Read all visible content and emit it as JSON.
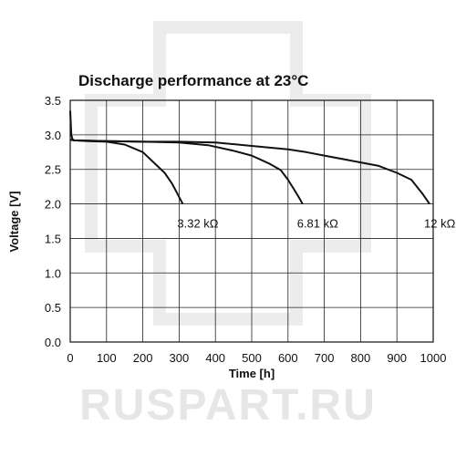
{
  "watermark": "RUSPART.RU",
  "chart_data": {
    "type": "line",
    "title": "Discharge performance at 23°C",
    "xlabel": "Time [h]",
    "ylabel": "Voltage [V]",
    "xlim": [
      0,
      1000
    ],
    "ylim": [
      0,
      3.5
    ],
    "xticks": [
      "0",
      "100",
      "200",
      "300",
      "400",
      "500",
      "600",
      "700",
      "800",
      "900",
      "1000"
    ],
    "yticks": [
      "0.0",
      "0.5",
      "1.0",
      "1.5",
      "2.0",
      "2.5",
      "3.0",
      "3.5"
    ],
    "grid": true,
    "series": [
      {
        "name": "3.32 kΩ",
        "x": [
          0,
          3,
          6,
          10,
          50,
          100,
          150,
          200,
          230,
          260,
          280,
          295,
          305,
          310
        ],
        "y": [
          3.35,
          3.0,
          2.94,
          2.92,
          2.91,
          2.9,
          2.86,
          2.75,
          2.6,
          2.45,
          2.3,
          2.15,
          2.05,
          2.0
        ]
      },
      {
        "name": "6.81 kΩ",
        "x": [
          0,
          10,
          100,
          200,
          300,
          380,
          450,
          500,
          550,
          580,
          600,
          620,
          635,
          640
        ],
        "y": [
          2.93,
          2.92,
          2.91,
          2.9,
          2.89,
          2.85,
          2.77,
          2.7,
          2.58,
          2.49,
          2.35,
          2.18,
          2.05,
          2.0
        ]
      },
      {
        "name": "12 kΩ",
        "x": [
          0,
          10,
          100,
          200,
          300,
          400,
          500,
          600,
          650,
          700,
          800,
          850,
          880,
          900,
          940,
          970,
          990
        ],
        "y": [
          2.93,
          2.92,
          2.91,
          2.9,
          2.9,
          2.89,
          2.84,
          2.79,
          2.75,
          2.7,
          2.6,
          2.55,
          2.49,
          2.45,
          2.35,
          2.15,
          2.0
        ]
      }
    ]
  }
}
